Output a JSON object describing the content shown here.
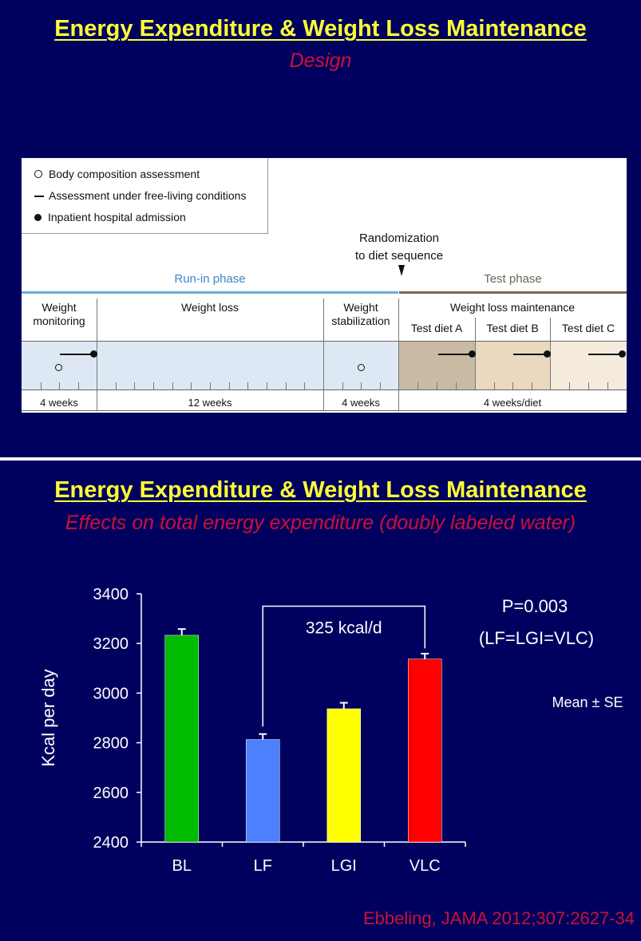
{
  "slide1": {
    "title": "Energy Expenditure & Weight Loss Maintenance",
    "subtitle": "Design",
    "legend": [
      {
        "icon": "open-circle",
        "label": "Body composition assessment"
      },
      {
        "icon": "dash",
        "label": "Assessment under free-living conditions"
      },
      {
        "icon": "filled-circle",
        "label": "Inpatient hospital admission"
      }
    ],
    "randomization_line1": "Randomization",
    "randomization_line2": "to diet sequence",
    "run_in_label": "Run-in phase",
    "test_label": "Test phase",
    "maintenance_label": "Weight loss maintenance",
    "segments": [
      {
        "line1": "Weight",
        "line2": "monitoring",
        "duration": "4 weeks"
      },
      {
        "line1": "Weight loss",
        "line2": "",
        "duration": "12 weeks"
      },
      {
        "line1": "Weight",
        "line2": "stabilization",
        "duration": "4 weeks"
      }
    ],
    "test_diets": [
      "Test diet A",
      "Test diet B",
      "Test diet C"
    ],
    "test_duration": "4 weeks/diet",
    "colors": {
      "run_in": "#6aaed6",
      "test": "#7a6a58",
      "run_in_fill": "#dde8f4",
      "diet_a": "#c9bba3",
      "diet_b": "#ead9bf",
      "diet_c": "#f4ebdd"
    }
  },
  "slide2": {
    "title": "Energy Expenditure & Weight Loss Maintenance",
    "subtitle": "Effects on total energy expenditure (doubly labeled water)",
    "p_value": "P=0.003",
    "p_note": "(LF=LGI=VLC)",
    "mean_note": "Mean ± SE",
    "bracket_label": "325 kcal/d",
    "credit": "Ebbeling, JAMA 2012;307:2627-34"
  },
  "chart_data": {
    "type": "bar",
    "categories": [
      "BL",
      "LF",
      "LGI",
      "VLC"
    ],
    "values": [
      3233,
      2813,
      2937,
      3137
    ],
    "errors": [
      25,
      22,
      24,
      22
    ],
    "colors": [
      "#00bb00",
      "#4d7fff",
      "#ffff00",
      "#ff0000"
    ],
    "ylabel": "Kcal per day",
    "ylim": [
      2400,
      3400
    ],
    "yticks": [
      2400,
      2600,
      2800,
      3000,
      3200,
      3400
    ],
    "annotation": {
      "from": "LF",
      "to": "VLC",
      "label": "325 kcal/d"
    }
  }
}
